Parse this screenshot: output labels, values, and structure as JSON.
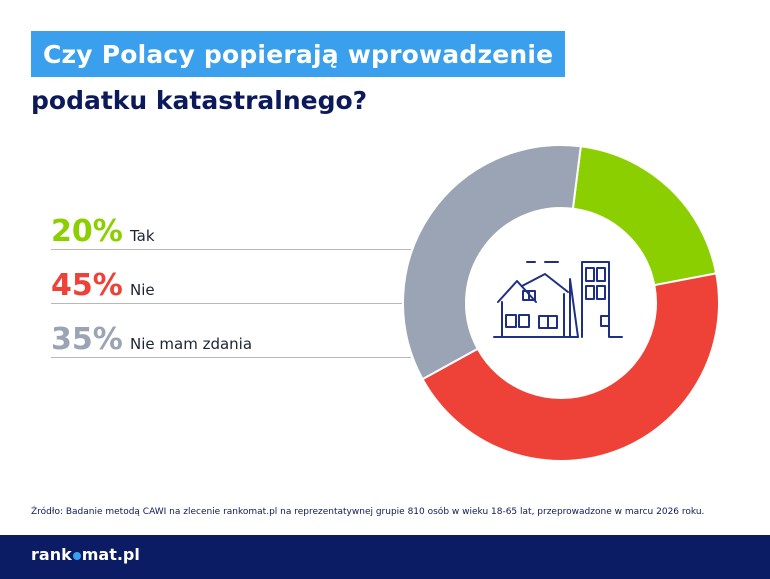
{
  "header": {
    "title_line1": "Czy Polacy popierają wprowadzenie",
    "title_line2": "podatku katastralnego?"
  },
  "colors": {
    "accent": "#3aa0ee",
    "navy": "#0c1a5c",
    "green": "#8ccf00",
    "red": "#ee4137",
    "gray": "#9ba4b4"
  },
  "chart_data": {
    "type": "pie",
    "donut": true,
    "categories": [
      "Tak",
      "Nie",
      "Nie mam zdania"
    ],
    "values": [
      20,
      45,
      35
    ],
    "value_labels": [
      "20%",
      "45%",
      "35%"
    ],
    "colors": [
      "#8ccf00",
      "#ee4137",
      "#9ba4b4"
    ],
    "center_icon": "house-buildings-icon"
  },
  "source_text": "Źródło: Badanie metodą CAWI na zlecenie rankomat.pl na reprezentatywnej grupie 810 osób w wieku 18-65 lat, przeprowadzone w marcu 2026 roku.",
  "footer": {
    "logo_left": "rank",
    "logo_right": "mat.pl"
  }
}
